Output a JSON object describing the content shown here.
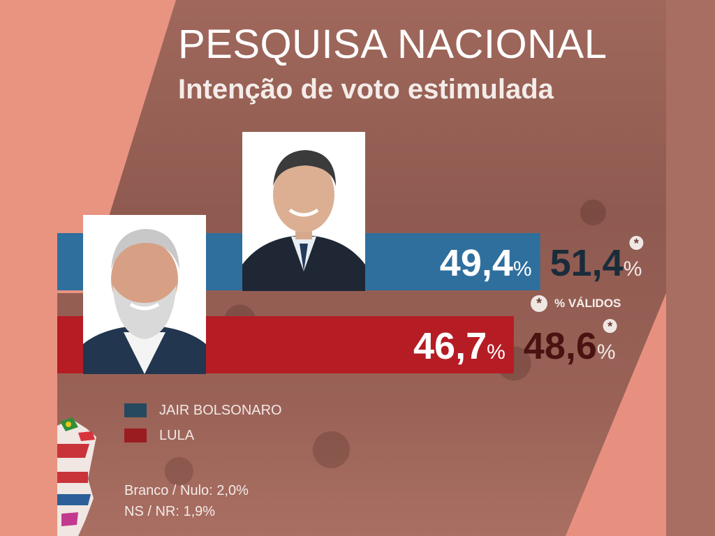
{
  "header": {
    "title": "PESQUISA NACIONAL",
    "subtitle": "Intenção de voto estimulada"
  },
  "chart_data": {
    "type": "bar",
    "title": "PESQUISA NACIONAL",
    "subtitle": "Intenção de voto estimulada",
    "orientation": "horizontal",
    "categories": [
      "JAIR BOLSONARO",
      "LULA"
    ],
    "series": [
      {
        "name": "",
        "values": [
          49.4,
          46.7
        ]
      },
      {
        "name": "% VÁLIDOS",
        "values": [
          51.4,
          48.6
        ]
      }
    ],
    "labels": {
      "total": [
        "49,4",
        "46,7"
      ],
      "valid": [
        "51,4",
        "48,6"
      ],
      "unit": "%",
      "valid_marker": "*"
    },
    "colors": [
      "#2e6f9e",
      "#b51c24"
    ],
    "valid_colors": [
      "#1a2c3a",
      "#4a1210"
    ],
    "legend_position": "bottom-left"
  },
  "legend": {
    "items": [
      {
        "label": "JAIR BOLSONARO",
        "color": "#26495f"
      },
      {
        "label": "LULA",
        "color": "#9a1c20"
      }
    ]
  },
  "valid_note": {
    "star": "*",
    "text": "% VÁLIDOS"
  },
  "notes": {
    "branco_nulo": "Branco / Nulo: 2,0%",
    "ns_nr": "NS / NR: 1,9%"
  }
}
